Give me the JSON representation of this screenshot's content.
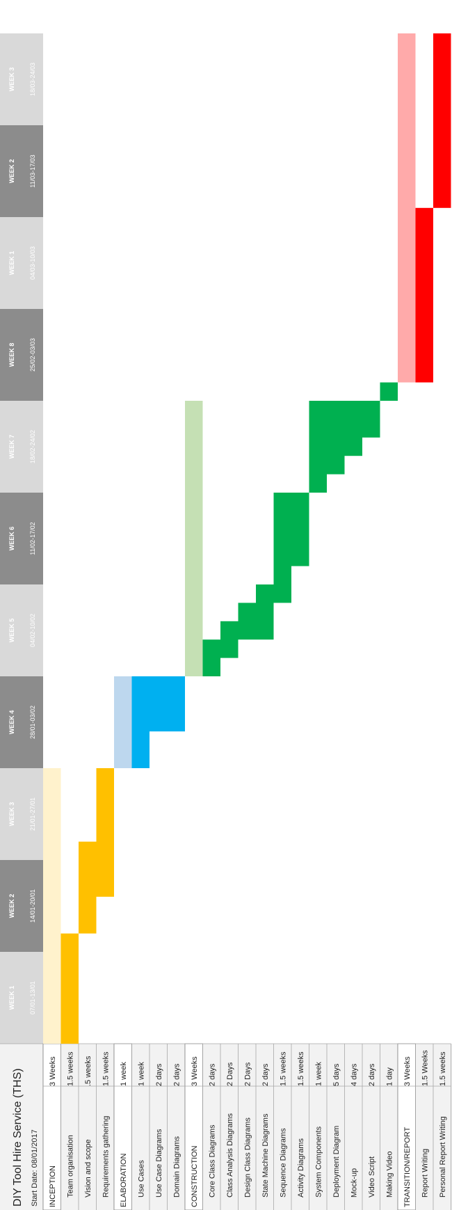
{
  "title": "DIY Tool Hire Service (THS)",
  "start_date": "Start Date: 08/01/2017",
  "weeks": [
    {
      "label": "WEEK 1",
      "dates": "07/01-13/01"
    },
    {
      "label": "WEEK 2",
      "dates": "14/01-20/01"
    },
    {
      "label": "WEEK 3",
      "dates": "21/01-27/01"
    },
    {
      "label": "WEEK 4",
      "dates": "28/01-03/02"
    },
    {
      "label": "WEEK 5",
      "dates": "04/02-10/02"
    },
    {
      "label": "WEEK 6",
      "dates": "11/02-17/02"
    },
    {
      "label": "WEEK 7",
      "dates": "18/02-24/02"
    },
    {
      "label": "WEEK 8",
      "dates": "25/02-03/03"
    },
    {
      "label": "WEEK 1",
      "dates": "04/03-10/03"
    },
    {
      "label": "WEEK 2",
      "dates": "11/03-17/03"
    },
    {
      "label": "WEEK 3",
      "dates": "18/03-24/03"
    }
  ],
  "colors": {
    "inception": "#ffc000",
    "inception_light": "#fff2cc",
    "elaboration": "#00b0f0",
    "elaboration_light": "#bdd7ee",
    "construction": "#00b050",
    "construction_light": "#c5e0b4",
    "transition": "#ff0000",
    "transition_light": "#ffaaaa",
    "header_dark": "#8c8c8c",
    "header_light": "#d9d9d9"
  },
  "chart_data": {
    "type": "gantt",
    "time_unit": "week",
    "tasks": [
      {
        "name": "INCEPTION",
        "duration": "3 Weeks",
        "phase": "inception",
        "is_phase": true,
        "start": 0.0,
        "end": 3.0
      },
      {
        "name": "Team organisation",
        "duration": "1.5 weeks",
        "phase": "inception",
        "is_phase": false,
        "start": 0.0,
        "end": 1.2
      },
      {
        "name": "Vision and scope",
        "duration": ".5 weeks",
        "phase": "inception",
        "is_phase": false,
        "start": 1.2,
        "end": 2.2
      },
      {
        "name": "Requirements gathering",
        "duration": "1.5 weeks",
        "phase": "inception",
        "is_phase": false,
        "start": 1.6,
        "end": 3.0
      },
      {
        "name": "ELABORATION",
        "duration": "1 week",
        "phase": "elaboration",
        "is_phase": true,
        "start": 3.0,
        "end": 4.0
      },
      {
        "name": "Use Cases",
        "duration": "1 week",
        "phase": "elaboration",
        "is_phase": false,
        "start": 3.0,
        "end": 4.0
      },
      {
        "name": "Use Case Diagrams",
        "duration": "2 days",
        "phase": "elaboration",
        "is_phase": false,
        "start": 3.4,
        "end": 4.0
      },
      {
        "name": "Domain Diagrams",
        "duration": "2 days",
        "phase": "elaboration",
        "is_phase": false,
        "start": 3.4,
        "end": 4.0
      },
      {
        "name": "CONSTRUCTION",
        "duration": "3 Weeks",
        "phase": "construction",
        "is_phase": true,
        "start": 4.0,
        "end": 7.0
      },
      {
        "name": "Core Class Diagrams",
        "duration": "2 days",
        "phase": "construction",
        "is_phase": false,
        "start": 4.0,
        "end": 4.4
      },
      {
        "name": "Class Analysis Diagrams",
        "duration": "2 Days",
        "phase": "construction",
        "is_phase": false,
        "start": 4.2,
        "end": 4.6
      },
      {
        "name": "Design Class Diagrams",
        "duration": "2 Days",
        "phase": "construction",
        "is_phase": false,
        "start": 4.4,
        "end": 4.8
      },
      {
        "name": "State Machine Diagrams",
        "duration": "2 days",
        "phase": "construction",
        "is_phase": false,
        "start": 4.4,
        "end": 5.0
      },
      {
        "name": "Sequence Diagrams",
        "duration": "1.5 weeks",
        "phase": "construction",
        "is_phase": false,
        "start": 4.8,
        "end": 6.0
      },
      {
        "name": "Activity Diagrams",
        "duration": "1.5 weeks",
        "phase": "construction",
        "is_phase": false,
        "start": 5.2,
        "end": 6.0
      },
      {
        "name": "System Components",
        "duration": "1 week",
        "phase": "construction",
        "is_phase": false,
        "start": 6.0,
        "end": 7.0
      },
      {
        "name": "Deployment Diagram",
        "duration": "5 days",
        "phase": "construction",
        "is_phase": false,
        "start": 6.2,
        "end": 7.0
      },
      {
        "name": "Mock-up",
        "duration": "4 days",
        "phase": "construction",
        "is_phase": false,
        "start": 6.4,
        "end": 7.0
      },
      {
        "name": "Video Script",
        "duration": "2 days",
        "phase": "construction",
        "is_phase": false,
        "start": 6.6,
        "end": 7.0
      },
      {
        "name": "Making Video",
        "duration": "1 day",
        "phase": "construction",
        "is_phase": false,
        "start": 7.0,
        "end": 7.2
      },
      {
        "name": "TRANSITION/REPORT",
        "duration": "3 Weeks",
        "phase": "transition",
        "is_phase": true,
        "start": 7.2,
        "end": 11.0
      },
      {
        "name": "Report Writing",
        "duration": "1.5 Weeks",
        "phase": "transition",
        "is_phase": false,
        "start": 7.2,
        "end": 9.1
      },
      {
        "name": "Personal Report Writing",
        "duration": "1.5 weeks",
        "phase": "transition",
        "is_phase": false,
        "start": 9.1,
        "end": 11.0
      }
    ]
  }
}
